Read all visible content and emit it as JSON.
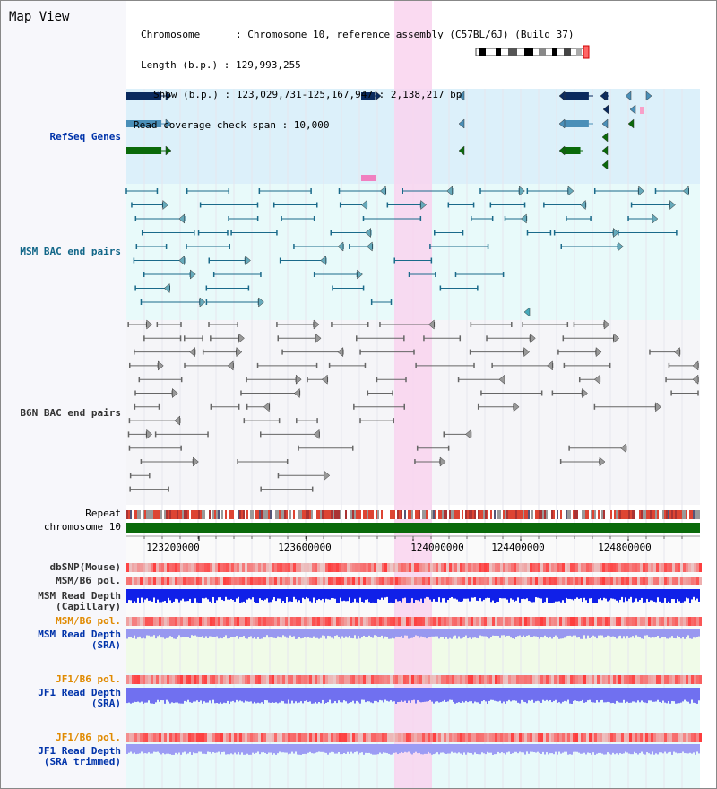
{
  "title": "Map View",
  "info": {
    "chromosome": "Chromosome      : Chromosome 10, reference assembly (C57BL/6J) (Build 37)",
    "length": "Length (b.p.) : 129,993,255",
    "show": "Show (b.p.) : 123,029,731-125,167,947 : 2,138,217 bp",
    "coverage": "Read coverage check span : 10,000"
  },
  "tracks": {
    "refseq": "RefSeq Genes",
    "msm_bac": "MSM BAC end pairs",
    "b6n_bac": "B6N BAC end pairs",
    "repeat": "Repeat",
    "chromosome": "chromosome 10",
    "dbsnp": "dbSNP(Mouse)",
    "msm_b6_pol_1": "MSM/B6 pol.",
    "msm_read_depth_cap_1": "MSM Read Depth",
    "msm_read_depth_cap_2": "(Capillary)",
    "msm_b6_pol_2": "MSM/B6 pol.",
    "msm_read_depth_sra_1": "MSM Read Depth",
    "msm_read_depth_sra_2": "(SRA)",
    "jf1_b6_pol_1": "JF1/B6 pol.",
    "jf1_read_depth_1": "JF1 Read Depth",
    "jf1_read_depth_2": "(SRA)",
    "jf1_b6_pol_2": "JF1/B6 pol.",
    "jf1_read_depth_trim_1": "JF1 Read Depth",
    "jf1_read_depth_trim_2": "(SRA trimmed)"
  },
  "axis": {
    "ticks": [
      "123200000",
      "123600000",
      "124000000",
      "124400000",
      "124800000"
    ]
  },
  "colors": {
    "refseq_bg": "#dcf0fa",
    "track_bg": "#e8fafa",
    "highlight": "#f9d4ef",
    "msm": "#1a6a8a",
    "b6n": "#666666",
    "gene_dark": "#0a2a5e",
    "gene_mid": "#4a8fb8",
    "gene_green": "#0a6a0a",
    "chromosome_bar": "#0a6a0a"
  }
}
